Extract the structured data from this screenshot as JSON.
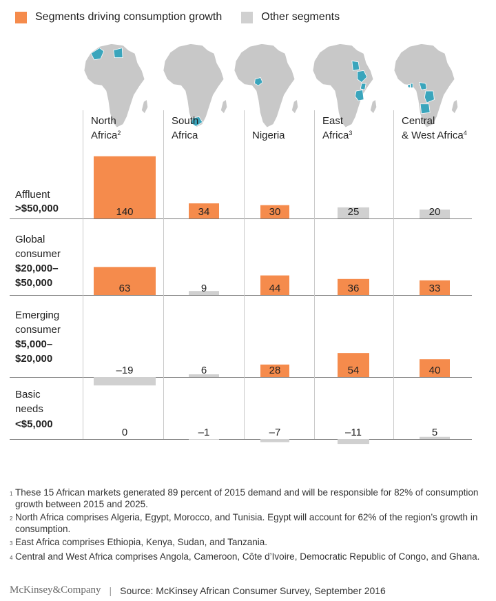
{
  "legend": {
    "growth": "Segments driving consumption growth",
    "other": "Other segments"
  },
  "colors": {
    "growth": "#F58B4C",
    "other": "#D0D0D0",
    "map_land": "#C8C8C8",
    "map_highlight": "#3AA5BC"
  },
  "chart_data": {
    "type": "bar",
    "categories": [
      {
        "line1": "North",
        "line2": "Africa",
        "sup": "2"
      },
      {
        "line1": "South",
        "line2": "Africa",
        "sup": ""
      },
      {
        "line1": "",
        "line2": "Nigeria",
        "sup": ""
      },
      {
        "line1": "East",
        "line2": "Africa",
        "sup": "3"
      },
      {
        "line1": "Central",
        "line2": "& West Africa",
        "sup": "4"
      }
    ],
    "segments": [
      {
        "lines": [
          "Affluent"
        ],
        "bold": [
          ">$50,000"
        ],
        "values": [
          140,
          34,
          30,
          25,
          20
        ],
        "driver": [
          true,
          true,
          true,
          false,
          false
        ]
      },
      {
        "lines": [
          "Global",
          "consumer"
        ],
        "bold": [
          "$20,000–",
          "$50,000"
        ],
        "values": [
          63,
          9,
          44,
          36,
          33
        ],
        "driver": [
          true,
          false,
          true,
          true,
          true
        ]
      },
      {
        "lines": [
          "Emerging",
          "consumer"
        ],
        "bold": [
          "$5,000–",
          "$20,000"
        ],
        "values": [
          -19,
          6,
          28,
          54,
          40
        ],
        "driver": [
          false,
          false,
          true,
          true,
          true
        ]
      },
      {
        "lines": [
          "Basic",
          "needs"
        ],
        "bold": [
          "<$5,000"
        ],
        "values": [
          0,
          -1,
          -7,
          -11,
          5
        ],
        "driver": [
          false,
          false,
          false,
          false,
          false
        ]
      }
    ],
    "value_labels": [
      [
        "140",
        "34",
        "30",
        "25",
        "20"
      ],
      [
        "63",
        "9",
        "44",
        "36",
        "33"
      ],
      [
        "–19",
        "6",
        "28",
        "54",
        "40"
      ],
      [
        "0",
        "–1",
        "–7",
        "–11",
        "5"
      ]
    ]
  },
  "footnotes": [
    {
      "num": "1",
      "text": "These 15 African markets generated 89 percent of 2015 demand and will be responsible for 82% of consumption growth between 2015 and 2025."
    },
    {
      "num": "2",
      "text": "North Africa comprises Algeria, Egypt, Morocco, and Tunisia. Egypt will account for 62% of the region’s growth in consumption."
    },
    {
      "num": "3",
      "text": "East Africa comprises Ethiopia, Kenya, Sudan, and Tanzania."
    },
    {
      "num": "4",
      "text": "Central and West Africa comprises Angola, Cameroon, Côte d’Ivoire, Democratic Republic of Congo, and Ghana."
    }
  ],
  "source": {
    "logo": "McKinsey&Company",
    "text": "Source: McKinsey African Consumer Survey, September 2016"
  }
}
